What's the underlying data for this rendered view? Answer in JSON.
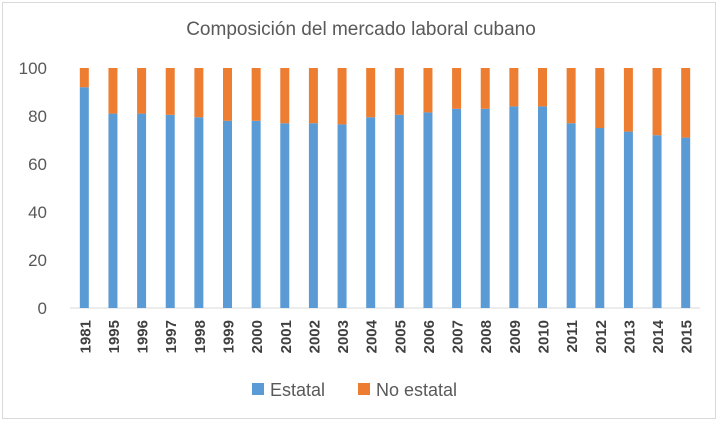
{
  "chart_data": {
    "type": "bar",
    "stacked": true,
    "title": "Composición del mercado laboral cubano",
    "xlabel": "",
    "ylabel": "",
    "ylim": [
      0,
      100
    ],
    "yticks": [
      0,
      20,
      40,
      60,
      80,
      100
    ],
    "grid": false,
    "legend_position": "bottom",
    "categories": [
      "1981",
      "1995",
      "1996",
      "1997",
      "1998",
      "1999",
      "2000",
      "2001",
      "2002",
      "2003",
      "2004",
      "2005",
      "2006",
      "2007",
      "2008",
      "2009",
      "2010",
      "2011",
      "2012",
      "2013",
      "2014",
      "2015"
    ],
    "series": [
      {
        "name": "Estatal",
        "color": "#5b9bd5",
        "values": [
          92,
          81,
          81,
          80.5,
          79.5,
          78,
          78,
          77,
          77,
          76.5,
          79.5,
          80.5,
          81.5,
          83,
          83,
          84,
          84,
          77,
          75,
          73.5,
          72,
          71
        ]
      },
      {
        "name": "No estatal",
        "color": "#ed7d31",
        "values": [
          8,
          19,
          19,
          19.5,
          20.5,
          22,
          22,
          23,
          23,
          23.5,
          20.5,
          19.5,
          18.5,
          17,
          17,
          16,
          16,
          23,
          25,
          26.5,
          28,
          29
        ]
      }
    ]
  }
}
